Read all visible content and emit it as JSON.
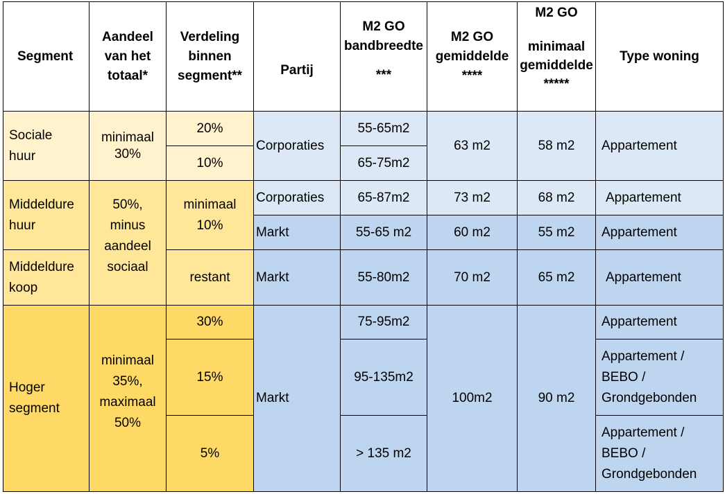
{
  "header": {
    "segment": "Segment",
    "aandeel": [
      "Aandeel",
      "van het",
      "totaal*"
    ],
    "verdeling": [
      "Verdeling",
      "binnen",
      "segment**"
    ],
    "partij": "Partij",
    "bandbreedte": [
      "M2  GO",
      "bandbreedte",
      "",
      "***"
    ],
    "gemiddelde": [
      "M2  GO",
      "gemiddelde",
      "****"
    ],
    "minimaal": [
      "M2  GO",
      "",
      "minimaal",
      "gemiddelde",
      "*****"
    ],
    "type": "Type woning"
  },
  "rows": {
    "sociale_huur": {
      "segment": [
        "Sociale",
        "huur"
      ],
      "aandeel": [
        "minimaal",
        "",
        "30%"
      ],
      "verdeling": [
        "20%",
        "10%"
      ],
      "partij": "Corporaties",
      "bandbreedte": [
        "55-65m2",
        "65-75m2"
      ],
      "gemiddelde": "63 m2",
      "minimaal": "58  m2",
      "type": "Appartement"
    },
    "middeldure_huur": {
      "segment": [
        "Middeldure",
        "huur"
      ],
      "aandeel": [
        "50%,",
        "minus",
        "aandeel",
        "sociaal"
      ],
      "verdeling": [
        "minimaal",
        "10%"
      ],
      "corporaties": {
        "partij": "Corporaties",
        "bandbreedte": "65-87m2",
        "gemiddelde": "73 m2",
        "minimaal": "68  m2",
        "type": "Appartement"
      },
      "markt": {
        "partij": "Markt",
        "bandbreedte": "55-65 m2",
        "gemiddelde": "60  m2",
        "minimaal": "55  m2",
        "type": "Appartement"
      }
    },
    "middeldure_koop": {
      "segment": [
        "Middeldure",
        "koop"
      ],
      "verdeling": "restant",
      "partij": "Markt",
      "bandbreedte": "55-80m2",
      "gemiddelde": "70 m2",
      "minimaal": "65  m2",
      "type": "Appartement"
    },
    "hoger_segment": {
      "segment": [
        "Hoger",
        "segment"
      ],
      "aandeel": [
        "minimaal",
        "35%,",
        "maximaal",
        "50%"
      ],
      "verdeling": [
        "30%",
        "15%",
        "5%"
      ],
      "partij": "Markt",
      "bandbreedte": [
        "75-95m2",
        "95-135m2",
        "> 135 m2"
      ],
      "gemiddelde": "100m2",
      "minimaal": "90 m2",
      "type": [
        [
          "Appartement"
        ],
        [
          "Appartement /",
          "BEBO /",
          "Grondgebonden"
        ],
        [
          "Appartement /",
          "BEBO /",
          "Grondgebonden"
        ]
      ]
    }
  },
  "colors": {
    "cream": "#fff2cc",
    "light_yellow": "#ffe699",
    "yellow": "#ffd966",
    "light_blue": "#dde8f6",
    "blue": "#bdd5ee"
  }
}
